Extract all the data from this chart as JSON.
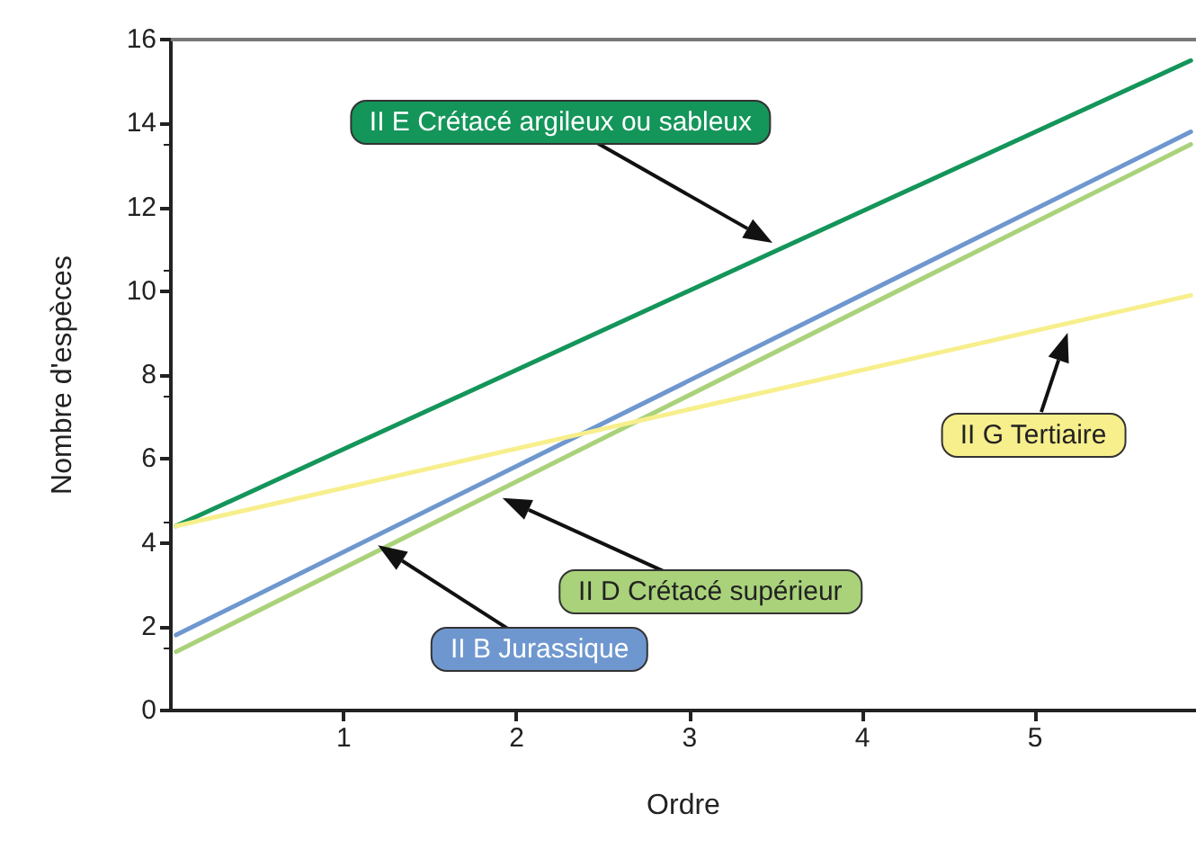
{
  "chart_data": {
    "type": "line",
    "xlabel": "Ordre",
    "ylabel": "Nombre d'espèces",
    "xlim": [
      0,
      5.93
    ],
    "xticks": [
      1,
      2,
      3,
      4,
      5
    ],
    "ylim": [
      0,
      16
    ],
    "yticks": [
      0,
      2,
      4,
      6,
      8,
      10,
      12,
      14,
      16
    ],
    "grid": false,
    "marker": "none",
    "line_style": "solid",
    "x": [
      0.03,
      5.9
    ],
    "series": [
      {
        "name": "II E Crétacé argileux ou sableux",
        "color": "#14955a",
        "values": [
          4.4,
          15.5
        ]
      },
      {
        "name": "II B Jurassique",
        "color": "#6f97cf",
        "values": [
          1.8,
          13.8
        ]
      },
      {
        "name": "II D Crétacé supérieur",
        "color": "#a9d27a",
        "values": [
          1.4,
          13.5
        ]
      },
      {
        "name": "II G Tertiaire",
        "color": "#f7ef8c",
        "values": [
          4.4,
          9.9
        ]
      }
    ]
  }
}
